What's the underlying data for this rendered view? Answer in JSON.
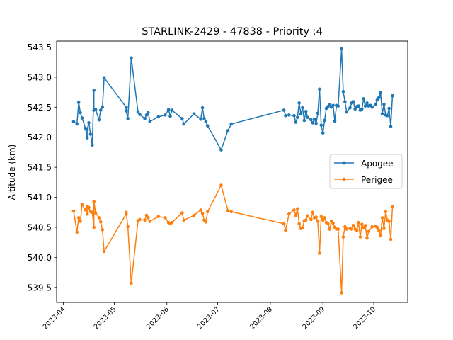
{
  "chart_data": {
    "type": "line",
    "title": "STARLINK-2429 - 47838 - Priority :4",
    "xlabel": "",
    "ylabel": "Altitude (km)",
    "x_ticks": [
      "2023-04",
      "2023-05",
      "2023-06",
      "2023-07",
      "2023-08",
      "2023-09",
      "2023-10"
    ],
    "y_ticks": [
      "539.5",
      "540.0",
      "540.5",
      "541.0",
      "541.5",
      "542.0",
      "542.5",
      "543.0",
      "543.5"
    ],
    "xlim": [
      "2023-03-28",
      "2023-10-21"
    ],
    "ylim": [
      539.25,
      543.6
    ],
    "grid": false,
    "legend_position": "center-right",
    "series": [
      {
        "name": "Apogee",
        "color": "#1f77b4",
        "points": [
          [
            "2023-04-07",
            542.26
          ],
          [
            "2023-04-09",
            542.22
          ],
          [
            "2023-04-10",
            542.58
          ],
          [
            "2023-04-11",
            542.41
          ],
          [
            "2023-04-12",
            542.32
          ],
          [
            "2023-04-14",
            542.15
          ],
          [
            "2023-04-15",
            541.99
          ],
          [
            "2023-04-15",
            542.13
          ],
          [
            "2023-04-16",
            542.24
          ],
          [
            "2023-04-17",
            542.05
          ],
          [
            "2023-04-18",
            541.87
          ],
          [
            "2023-04-19",
            542.78
          ],
          [
            "2023-04-19",
            542.45
          ],
          [
            "2023-04-20",
            542.46
          ],
          [
            "2023-04-22",
            542.29
          ],
          [
            "2023-04-23",
            542.45
          ],
          [
            "2023-04-24",
            542.5
          ],
          [
            "2023-04-25",
            542.99
          ],
          [
            "2023-05-08",
            542.5
          ],
          [
            "2023-05-08",
            542.44
          ],
          [
            "2023-05-09",
            542.31
          ],
          [
            "2023-05-11",
            543.32
          ],
          [
            "2023-05-15",
            542.42
          ],
          [
            "2023-05-16",
            542.38
          ],
          [
            "2023-05-19",
            542.31
          ],
          [
            "2023-05-20",
            542.37
          ],
          [
            "2023-05-21",
            542.41
          ],
          [
            "2023-05-22",
            542.26
          ],
          [
            "2023-05-27",
            542.34
          ],
          [
            "2023-05-31",
            542.37
          ],
          [
            "2023-06-02",
            542.46
          ],
          [
            "2023-06-03",
            542.35
          ],
          [
            "2023-06-04",
            542.45
          ],
          [
            "2023-06-10",
            542.31
          ],
          [
            "2023-06-11",
            542.22
          ],
          [
            "2023-06-17",
            542.39
          ],
          [
            "2023-06-21",
            542.3
          ],
          [
            "2023-06-22",
            542.49
          ],
          [
            "2023-06-23",
            542.31
          ],
          [
            "2023-06-24",
            542.26
          ],
          [
            "2023-06-25",
            542.19
          ],
          [
            "2023-07-03",
            541.79
          ],
          [
            "2023-07-07",
            542.11
          ],
          [
            "2023-07-09",
            542.22
          ],
          [
            "2023-08-09",
            542.45
          ],
          [
            "2023-08-10",
            542.36
          ],
          [
            "2023-08-12",
            542.37
          ],
          [
            "2023-08-15",
            542.36
          ],
          [
            "2023-08-16",
            542.25
          ],
          [
            "2023-08-17",
            542.33
          ],
          [
            "2023-08-18",
            542.57
          ],
          [
            "2023-08-19",
            542.39
          ],
          [
            "2023-08-20",
            542.49
          ],
          [
            "2023-08-21",
            542.28
          ],
          [
            "2023-08-22",
            542.43
          ],
          [
            "2023-08-23",
            542.33
          ],
          [
            "2023-08-25",
            542.29
          ],
          [
            "2023-08-26",
            542.24
          ],
          [
            "2023-08-27",
            542.3
          ],
          [
            "2023-08-28",
            542.23
          ],
          [
            "2023-08-29",
            542.4
          ],
          [
            "2023-08-30",
            542.8
          ],
          [
            "2023-08-31",
            542.2
          ],
          [
            "2023-09-01",
            542.07
          ],
          [
            "2023-09-02",
            542.28
          ],
          [
            "2023-09-03",
            542.48
          ],
          [
            "2023-09-04",
            542.51
          ],
          [
            "2023-09-05",
            542.54
          ],
          [
            "2023-09-06",
            542.5
          ],
          [
            "2023-09-07",
            542.53
          ],
          [
            "2023-09-08",
            542.27
          ],
          [
            "2023-09-09",
            542.53
          ],
          [
            "2023-09-10",
            542.52
          ],
          [
            "2023-09-12",
            543.47
          ],
          [
            "2023-09-13",
            542.76
          ],
          [
            "2023-09-14",
            542.59
          ],
          [
            "2023-09-15",
            542.42
          ],
          [
            "2023-09-17",
            542.49
          ],
          [
            "2023-09-18",
            542.57
          ],
          [
            "2023-09-19",
            542.59
          ],
          [
            "2023-09-20",
            542.47
          ],
          [
            "2023-09-21",
            542.51
          ],
          [
            "2023-09-22",
            542.52
          ],
          [
            "2023-09-23",
            542.45
          ],
          [
            "2023-09-24",
            542.47
          ],
          [
            "2023-09-25",
            542.64
          ],
          [
            "2023-09-26",
            542.52
          ],
          [
            "2023-09-27",
            542.57
          ],
          [
            "2023-09-28",
            542.52
          ],
          [
            "2023-09-29",
            542.53
          ],
          [
            "2023-09-30",
            542.5
          ],
          [
            "2023-10-02",
            542.55
          ],
          [
            "2023-10-03",
            542.62
          ],
          [
            "2023-10-04",
            542.66
          ],
          [
            "2023-10-05",
            542.74
          ],
          [
            "2023-10-06",
            542.39
          ],
          [
            "2023-10-07",
            542.55
          ],
          [
            "2023-10-08",
            542.37
          ],
          [
            "2023-10-09",
            542.36
          ],
          [
            "2023-10-10",
            542.48
          ],
          [
            "2023-10-11",
            542.18
          ],
          [
            "2023-10-12",
            542.69
          ]
        ]
      },
      {
        "name": "Perigee",
        "color": "#ff7f0e",
        "points": [
          [
            "2023-04-07",
            540.77
          ],
          [
            "2023-04-09",
            540.42
          ],
          [
            "2023-04-10",
            540.66
          ],
          [
            "2023-04-11",
            540.6
          ],
          [
            "2023-04-12",
            540.88
          ],
          [
            "2023-04-14",
            540.79
          ],
          [
            "2023-04-15",
            540.85
          ],
          [
            "2023-04-15",
            540.72
          ],
          [
            "2023-04-16",
            540.83
          ],
          [
            "2023-04-17",
            540.76
          ],
          [
            "2023-04-18",
            540.75
          ],
          [
            "2023-04-19",
            540.5
          ],
          [
            "2023-04-19",
            540.93
          ],
          [
            "2023-04-20",
            540.74
          ],
          [
            "2023-04-22",
            540.66
          ],
          [
            "2023-04-23",
            540.59
          ],
          [
            "2023-04-24",
            540.46
          ],
          [
            "2023-04-25",
            540.1
          ],
          [
            "2023-05-08",
            540.72
          ],
          [
            "2023-05-08",
            540.75
          ],
          [
            "2023-05-09",
            540.51
          ],
          [
            "2023-05-11",
            539.57
          ],
          [
            "2023-05-15",
            540.61
          ],
          [
            "2023-05-16",
            540.63
          ],
          [
            "2023-05-19",
            540.62
          ],
          [
            "2023-05-20",
            540.7
          ],
          [
            "2023-05-21",
            540.66
          ],
          [
            "2023-05-22",
            540.6
          ],
          [
            "2023-05-27",
            540.68
          ],
          [
            "2023-05-31",
            540.66
          ],
          [
            "2023-06-02",
            540.58
          ],
          [
            "2023-06-03",
            540.56
          ],
          [
            "2023-06-04",
            540.58
          ],
          [
            "2023-06-10",
            540.74
          ],
          [
            "2023-06-11",
            540.62
          ],
          [
            "2023-06-17",
            540.7
          ],
          [
            "2023-06-21",
            540.79
          ],
          [
            "2023-06-22",
            540.73
          ],
          [
            "2023-06-23",
            540.62
          ],
          [
            "2023-06-24",
            540.59
          ],
          [
            "2023-06-25",
            540.76
          ],
          [
            "2023-07-03",
            541.2
          ],
          [
            "2023-07-07",
            540.78
          ],
          [
            "2023-07-09",
            540.76
          ],
          [
            "2023-08-09",
            540.56
          ],
          [
            "2023-08-10",
            540.45
          ],
          [
            "2023-08-12",
            540.72
          ],
          [
            "2023-08-15",
            540.79
          ],
          [
            "2023-08-16",
            540.7
          ],
          [
            "2023-08-17",
            540.81
          ],
          [
            "2023-08-18",
            540.56
          ],
          [
            "2023-08-19",
            540.48
          ],
          [
            "2023-08-20",
            540.49
          ],
          [
            "2023-08-21",
            540.61
          ],
          [
            "2023-08-22",
            540.62
          ],
          [
            "2023-08-23",
            540.69
          ],
          [
            "2023-08-25",
            540.63
          ],
          [
            "2023-08-26",
            540.75
          ],
          [
            "2023-08-27",
            540.66
          ],
          [
            "2023-08-28",
            540.67
          ],
          [
            "2023-08-29",
            540.6
          ],
          [
            "2023-08-30",
            540.07
          ],
          [
            "2023-08-31",
            540.68
          ],
          [
            "2023-09-01",
            540.62
          ],
          [
            "2023-09-02",
            540.66
          ],
          [
            "2023-09-03",
            540.58
          ],
          [
            "2023-09-04",
            540.56
          ],
          [
            "2023-09-05",
            540.47
          ],
          [
            "2023-09-06",
            540.6
          ],
          [
            "2023-09-07",
            540.57
          ],
          [
            "2023-09-08",
            540.5
          ],
          [
            "2023-09-09",
            540.47
          ],
          [
            "2023-09-10",
            540.47
          ],
          [
            "2023-09-12",
            539.41
          ],
          [
            "2023-09-13",
            540.34
          ],
          [
            "2023-09-14",
            540.51
          ],
          [
            "2023-09-15",
            540.47
          ],
          [
            "2023-09-17",
            540.48
          ],
          [
            "2023-09-18",
            540.47
          ],
          [
            "2023-09-19",
            540.53
          ],
          [
            "2023-09-20",
            540.47
          ],
          [
            "2023-09-21",
            540.45
          ],
          [
            "2023-09-22",
            540.58
          ],
          [
            "2023-09-23",
            540.34
          ],
          [
            "2023-09-24",
            540.55
          ],
          [
            "2023-09-25",
            540.49
          ],
          [
            "2023-09-26",
            540.53
          ],
          [
            "2023-09-27",
            540.32
          ],
          [
            "2023-09-28",
            540.43
          ],
          [
            "2023-09-30",
            540.51
          ],
          [
            "2023-10-02",
            540.52
          ],
          [
            "2023-10-03",
            540.5
          ],
          [
            "2023-10-04",
            540.45
          ],
          [
            "2023-10-05",
            540.36
          ],
          [
            "2023-10-06",
            540.66
          ],
          [
            "2023-10-07",
            540.48
          ],
          [
            "2023-10-08",
            540.76
          ],
          [
            "2023-10-09",
            540.62
          ],
          [
            "2023-10-10",
            540.6
          ],
          [
            "2023-10-11",
            540.3
          ],
          [
            "2023-10-12",
            540.84
          ]
        ]
      }
    ]
  }
}
